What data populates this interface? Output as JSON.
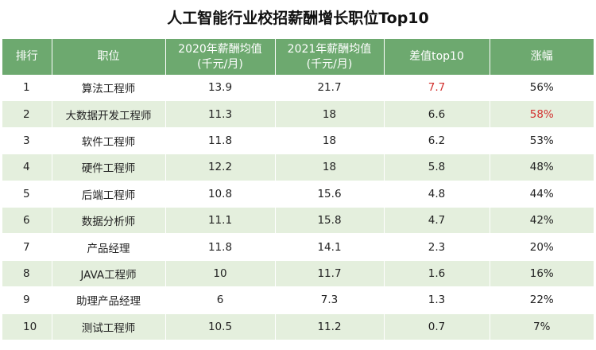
{
  "title": "人工智能行业校招薪酬增长职位Top10",
  "colors": {
    "header": "#6da96f",
    "row_alt": "#e4efdd",
    "highlight": "#d2312f"
  },
  "table": {
    "headers": [
      {
        "line1": "排行",
        "line2": ""
      },
      {
        "line1": "职位",
        "line2": ""
      },
      {
        "line1": "2020年薪酬均值",
        "line2": "(千元/月)"
      },
      {
        "line1": "2021年薪酬均值",
        "line2": "(千元/月)"
      },
      {
        "line1": "差值top10",
        "line2": ""
      },
      {
        "line1": "涨幅",
        "line2": ""
      }
    ],
    "rows": [
      {
        "rank": "1",
        "position": "算法工程师",
        "y2020": "13.9",
        "y2021": "21.7",
        "diff": "7.7",
        "growth": "56%"
      },
      {
        "rank": "2",
        "position": "大数据开发工程师",
        "y2020": "11.3",
        "y2021": "18",
        "diff": "6.6",
        "growth": "58%"
      },
      {
        "rank": "3",
        "position": "软件工程师",
        "y2020": "11.8",
        "y2021": "18",
        "diff": "6.2",
        "growth": "53%"
      },
      {
        "rank": "4",
        "position": "硬件工程师",
        "y2020": "12.2",
        "y2021": "18",
        "diff": "5.8",
        "growth": "48%"
      },
      {
        "rank": "5",
        "position": "后端工程师",
        "y2020": "10.8",
        "y2021": "15.6",
        "diff": "4.8",
        "growth": "44%"
      },
      {
        "rank": "6",
        "position": "数据分析师",
        "y2020": "11.1",
        "y2021": "15.8",
        "diff": "4.7",
        "growth": "42%"
      },
      {
        "rank": "7",
        "position": "产品经理",
        "y2020": "11.8",
        "y2021": "14.1",
        "diff": "2.3",
        "growth": "20%"
      },
      {
        "rank": "8",
        "position": "JAVA工程师",
        "y2020": "10",
        "y2021": "11.7",
        "diff": "1.6",
        "growth": "16%"
      },
      {
        "rank": "9",
        "position": "助理产品经理",
        "y2020": "6",
        "y2021": "7.3",
        "diff": "1.3",
        "growth": "22%"
      },
      {
        "rank": "10",
        "position": "测试工程师",
        "y2020": "10.5",
        "y2021": "11.2",
        "diff": "0.7",
        "growth": "7%"
      }
    ]
  }
}
